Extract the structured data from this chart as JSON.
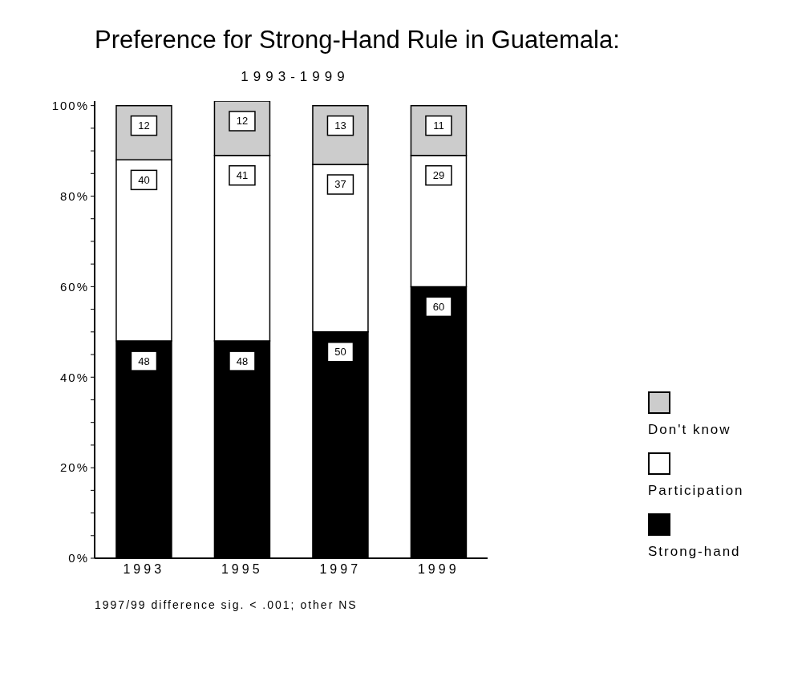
{
  "chart_data": {
    "type": "bar",
    "title": "Preference for Strong-Hand Rule in Guatemala:",
    "subtitle": "1993-1999",
    "categories": [
      "1993",
      "1995",
      "1997",
      "1999"
    ],
    "stacked": true,
    "series": [
      {
        "name": "Strong-hand",
        "color": "#000000",
        "values": [
          48,
          48,
          50,
          60
        ]
      },
      {
        "name": "Participation",
        "color": "#ffffff",
        "values": [
          40,
          41,
          37,
          29
        ]
      },
      {
        "name": "Don't know",
        "color": "#cccccc",
        "values": [
          12,
          12,
          13,
          11
        ]
      }
    ],
    "data_labels": true,
    "ylim": [
      0,
      101
    ],
    "yticks": [
      {
        "value": 0,
        "label": "0%"
      },
      {
        "value": 5,
        "label": null
      },
      {
        "value": 10,
        "label": null
      },
      {
        "value": 15,
        "label": null
      },
      {
        "value": 20,
        "label": "20%"
      },
      {
        "value": 25,
        "label": null
      },
      {
        "value": 30,
        "label": null
      },
      {
        "value": 35,
        "label": null
      },
      {
        "value": 40,
        "label": "40%"
      },
      {
        "value": 45,
        "label": null
      },
      {
        "value": 50,
        "label": null
      },
      {
        "value": 55,
        "label": null
      },
      {
        "value": 60,
        "label": "60%"
      },
      {
        "value": 65,
        "label": null
      },
      {
        "value": 70,
        "label": null
      },
      {
        "value": 75,
        "label": null
      },
      {
        "value": 80,
        "label": "80%"
      },
      {
        "value": 85,
        "label": null
      },
      {
        "value": 90,
        "label": null
      },
      {
        "value": 95,
        "label": null
      },
      {
        "value": 100,
        "label": "100%"
      }
    ],
    "legend": "bottom right",
    "annotations": [
      "1997/99 difference sig. < .001; other NS"
    ]
  }
}
